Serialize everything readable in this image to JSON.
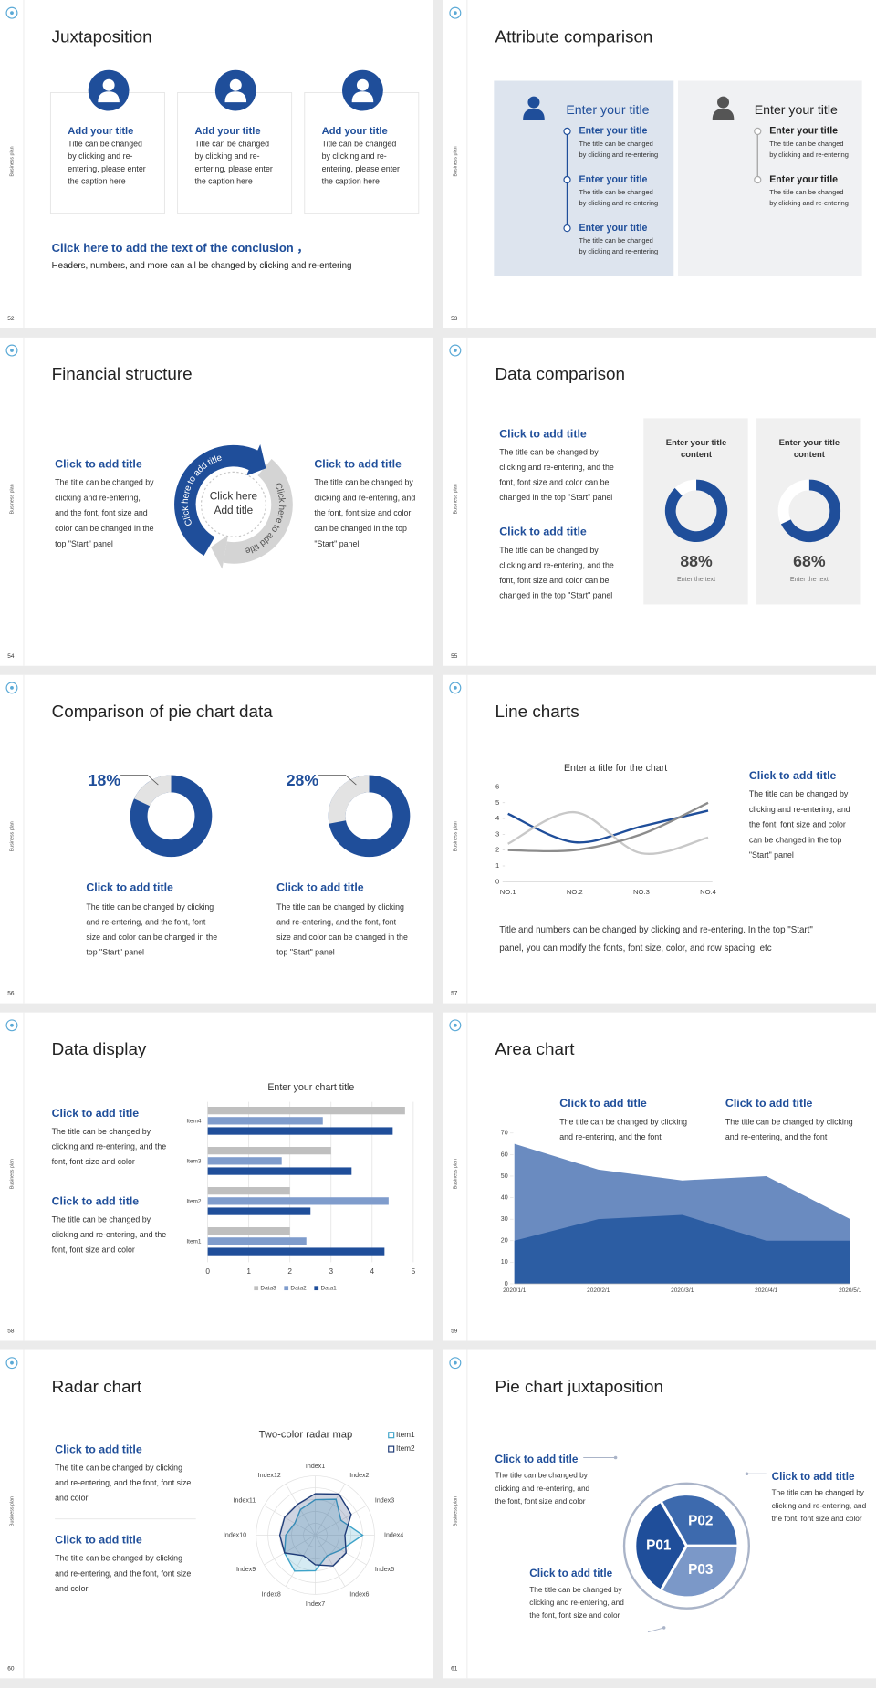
{
  "slides": [
    {
      "number": "52",
      "side": "Business plan",
      "title": "Juxtaposition",
      "cards": [
        {
          "heading": "Add your title",
          "lines": [
            "Title can be changed",
            "by clicking and re-",
            "entering, please enter",
            "the caption here"
          ]
        },
        {
          "heading": "Add your title",
          "lines": [
            "Title can be changed",
            "by clicking and re-",
            "entering, please enter",
            "the caption here"
          ]
        },
        {
          "heading": "Add your title",
          "lines": [
            "Title can be changed",
            "by clicking and re-",
            "entering, please enter",
            "the caption here"
          ]
        }
      ],
      "conclusion": {
        "heading": "Click here to add the text of the conclusion ，",
        "text": "Headers, numbers, and more can all be changed by clicking and re-entering"
      }
    },
    {
      "number": "53",
      "side": "Business plan",
      "title": "Attribute comparison",
      "panels": [
        {
          "heading": "Enter your title",
          "items": [
            {
              "heading": "Enter your title",
              "lines": [
                "The title can be changed",
                "by clicking and re-entering"
              ]
            },
            {
              "heading": "Enter your title",
              "lines": [
                "The title can be changed",
                "by clicking and re-entering"
              ]
            },
            {
              "heading": "Enter your title",
              "lines": [
                "The title can be changed",
                "by clicking and re-entering"
              ]
            }
          ]
        },
        {
          "heading": "Enter your title",
          "items": [
            {
              "heading": "Enter your title",
              "lines": [
                "The title can be changed",
                "by clicking and re-entering"
              ]
            },
            {
              "heading": "Enter your title",
              "lines": [
                "The title can be changed",
                "by clicking and re-entering"
              ]
            }
          ]
        }
      ]
    },
    {
      "number": "54",
      "side": "Business plan",
      "title": "Financial structure",
      "blocks": [
        {
          "heading": "Click to add title",
          "lines": [
            "The title can be changed by",
            "clicking and re-entering,",
            "and the font, font size and",
            "color can be changed in the",
            "top \"Start\" panel"
          ]
        },
        {
          "heading": "Click to add title",
          "lines": [
            "The title can be changed by",
            "clicking and re-entering, and",
            "the font, font size and color",
            "can be changed in the top",
            "\"Start\" panel"
          ]
        }
      ],
      "arc_labels": [
        "Click here to add title",
        "Click here to add title"
      ],
      "center": [
        "Click here",
        "Add title"
      ]
    },
    {
      "number": "55",
      "side": "Business plan",
      "title": "Data comparison",
      "blocks": [
        {
          "heading": "Click to add title",
          "lines": [
            "The title can be changed by",
            "clicking and re-entering, and the",
            "font, font size and color can be",
            "changed in the top \"Start\" panel"
          ]
        },
        {
          "heading": "Click to add title",
          "lines": [
            "The title can be changed by",
            "clicking and re-entering, and the",
            "font, font size and color can be",
            "changed in the top \"Start\" panel"
          ]
        }
      ],
      "panels": [
        {
          "title": [
            "Enter your title",
            "content"
          ],
          "value": 88,
          "value_label": "88%",
          "caption": "Enter the text"
        },
        {
          "title": [
            "Enter your title",
            "content"
          ],
          "value": 68,
          "value_label": "68%",
          "caption": "Enter the text"
        }
      ]
    },
    {
      "number": "56",
      "side": "Business plan",
      "title": "Comparison of pie chart data",
      "donuts": [
        {
          "value": 18,
          "value_label": "18%",
          "heading": "Click to add title",
          "lines": [
            "The title can be changed by clicking",
            "and re-entering, and the font, font",
            "size and color can be changed in the",
            "top \"Start\" panel"
          ]
        },
        {
          "value": 28,
          "value_label": "28%",
          "heading": "Click to add title",
          "lines": [
            "The title can be changed by clicking",
            "and re-entering, and the font, font",
            "size and color can be changed in the",
            "top \"Start\" panel"
          ]
        }
      ]
    },
    {
      "number": "57",
      "side": "Business plan",
      "title": "Line charts",
      "chart": {
        "type": "line",
        "title": "Enter a title for the chart",
        "categories": [
          "NO.1",
          "NO.2",
          "NO.3",
          "NO.4"
        ],
        "ylim": [
          0,
          6
        ],
        "yticks": [
          0,
          1,
          2,
          3,
          4,
          5,
          6
        ],
        "series": [
          {
            "color": "#1f4e9a",
            "values": [
              4.3,
              2.5,
              3.5,
              4.5
            ]
          },
          {
            "color": "#c8c8c8",
            "values": [
              2.4,
              4.4,
              1.8,
              2.8
            ]
          },
          {
            "color": "#8c8c8c",
            "values": [
              2,
              2,
              3,
              5
            ]
          }
        ]
      },
      "block": {
        "heading": "Click to add title",
        "lines": [
          "The title can be changed by",
          "clicking and re-entering, and",
          "the font, font size and color",
          "can be changed in the top",
          "\"Start\" panel"
        ]
      },
      "note": [
        "Title and numbers can be changed by clicking and re-entering. In the top \"Start\"",
        "panel, you can modify the fonts, font size, color, and row spacing, etc"
      ]
    },
    {
      "number": "58",
      "side": "Business plan",
      "title": "Data display",
      "chart": {
        "type": "bar",
        "orientation": "horizontal",
        "title": "Enter your chart title",
        "categories": [
          "Item1",
          "Item2",
          "Item3",
          "Item4"
        ],
        "xlim": [
          0,
          5
        ],
        "xticks": [
          0,
          1,
          2,
          3,
          4,
          5
        ],
        "grid": true,
        "series": [
          {
            "name": "Data1",
            "color": "#1f4e9a",
            "values": [
              4.3,
              2.5,
              3.5,
              4.5
            ]
          },
          {
            "name": "Data2",
            "color": "#7f9ccc",
            "values": [
              2.4,
              4.4,
              1.8,
              2.8
            ]
          },
          {
            "name": "Data3",
            "color": "#bfbfbf",
            "values": [
              2,
              2,
              3,
              4.8
            ]
          }
        ]
      },
      "blocks": [
        {
          "heading": "Click to add title",
          "lines": [
            "The title can be changed by",
            "clicking and re-entering, and the",
            "font, font size and color"
          ]
        },
        {
          "heading": "Click to add title",
          "lines": [
            "The title can be changed by",
            "clicking and re-entering, and the",
            "font, font size and color"
          ]
        }
      ]
    },
    {
      "number": "59",
      "side": "Business plan",
      "title": "Area chart",
      "chart": {
        "type": "area",
        "x": [
          "2020/1/1",
          "2020/2/1",
          "2020/3/1",
          "2020/4/1",
          "2020/5/1"
        ],
        "ylim": [
          0,
          70
        ],
        "yticks": [
          0,
          10,
          20,
          30,
          40,
          50,
          60,
          70
        ],
        "series": [
          {
            "color": "#6a8bc0",
            "values": [
              65,
              53,
              48,
              50,
              30
            ]
          },
          {
            "color": "#2c5da3",
            "values": [
              20,
              30,
              32,
              20,
              20
            ]
          }
        ]
      },
      "blocks": [
        {
          "heading": "Click to add title",
          "lines": [
            "The title can be changed by clicking",
            "and re-entering, and the font"
          ]
        },
        {
          "heading": "Click to add title",
          "lines": [
            "The title can be changed by clicking",
            "and re-entering, and the font"
          ]
        }
      ]
    },
    {
      "number": "60",
      "side": "Business plan",
      "title": "Radar chart",
      "chart": {
        "type": "radar",
        "title": "Two-color radar map",
        "categories": [
          "Index1",
          "Index2",
          "Index3",
          "Index4",
          "Index5",
          "Index6",
          "Index7",
          "Index8",
          "Index9",
          "Index10",
          "Index11",
          "Index12"
        ],
        "rlim": [
          0,
          5
        ],
        "rticks": [
          1,
          2,
          3,
          4,
          5
        ],
        "series": [
          {
            "name": "Item1",
            "color": "#3ea3c9",
            "values": [
              3,
              3.5,
              2.5,
              4,
              2.5,
              2,
              3,
              3.5,
              3,
              2.5,
              2,
              2.5
            ]
          },
          {
            "name": "Item2",
            "color": "#1f3c78",
            "values": [
              3.5,
              4,
              3.5,
              2.5,
              3,
              3,
              2.5,
              2,
              3,
              3,
              3,
              3
            ]
          }
        ]
      },
      "blocks": [
        {
          "heading": "Click to add title",
          "lines": [
            "The title can be changed by clicking",
            "and re-entering, and the font, font size",
            "and color"
          ]
        },
        {
          "heading": "Click to add title",
          "lines": [
            "The title can be changed by clicking",
            "and re-entering, and the font, font size",
            "and color"
          ]
        }
      ]
    },
    {
      "number": "61",
      "side": "Business plan",
      "title": "Pie chart juxtaposition",
      "segments": [
        "P01",
        "P02",
        "P03"
      ],
      "blocks": [
        {
          "heading": "Click to add title",
          "lines": [
            "The title can be changed by",
            "clicking and re-entering, and",
            "the font, font size and color"
          ]
        },
        {
          "heading": "Click to add title",
          "lines": [
            "The title can be changed by",
            "clicking and re-entering, and",
            "the font, font size and color"
          ]
        },
        {
          "heading": "Click to add title",
          "lines": [
            "The title can be changed by",
            "clicking and re-entering, and",
            "the font, font size and color"
          ]
        }
      ]
    }
  ]
}
